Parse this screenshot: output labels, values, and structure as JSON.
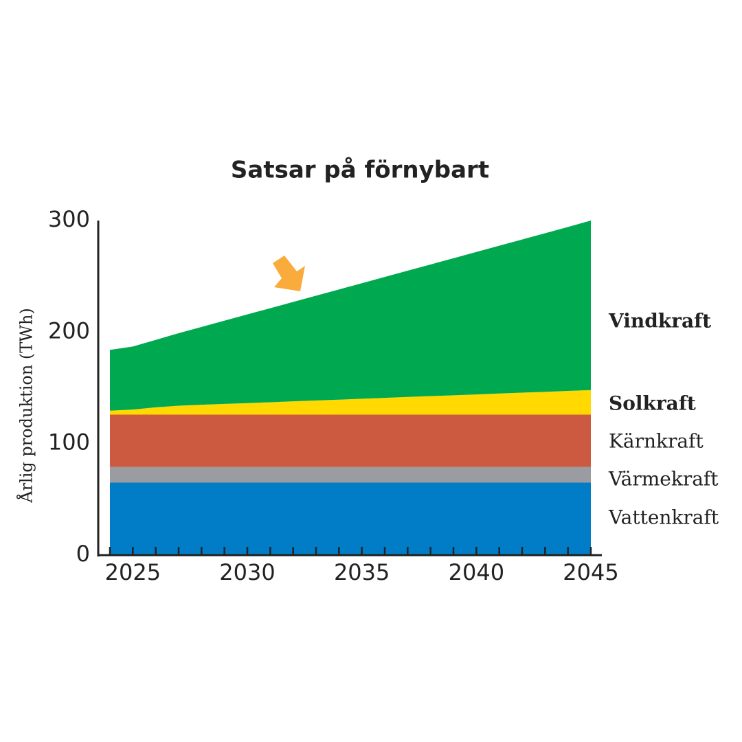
{
  "chart_data": {
    "type": "stacked_area",
    "title": "Satsar på förnybart",
    "ylabel": "Årlig produktion (TWh)",
    "x": [
      2024,
      2025,
      2026,
      2027,
      2028,
      2029,
      2030,
      2031,
      2032,
      2033,
      2034,
      2035,
      2036,
      2037,
      2038,
      2039,
      2040,
      2041,
      2042,
      2043,
      2044,
      2045
    ],
    "xlim": [
      2024,
      2045
    ],
    "xticks": [
      2025,
      2030,
      2035,
      2040,
      2045
    ],
    "ylim": [
      0,
      300
    ],
    "yticks": [
      0,
      100,
      200,
      300
    ],
    "series": [
      {
        "name": "Vattenkraft",
        "color": "#007dc6",
        "values": [
          65,
          65,
          65,
          65,
          65,
          65,
          65,
          65,
          65,
          65,
          65,
          65,
          65,
          65,
          65,
          65,
          65,
          65,
          65,
          65,
          65,
          65
        ]
      },
      {
        "name": "Värmekraft",
        "color": "#9b9ca1",
        "values": [
          14,
          14,
          14,
          14,
          14,
          14,
          14,
          14,
          14,
          14,
          14,
          14,
          14,
          14,
          14,
          14,
          14,
          14,
          14,
          14,
          14,
          14
        ]
      },
      {
        "name": "Kärnkraft",
        "color": "#cb5a40",
        "values": [
          47,
          47,
          47,
          47,
          47,
          47,
          47,
          47,
          47,
          47,
          47,
          47,
          47,
          47,
          47,
          47,
          47,
          47,
          47,
          47,
          47,
          47
        ]
      },
      {
        "name": "Solkraft",
        "color": "#ffd900",
        "values": [
          3.5,
          4.5,
          6.5,
          8,
          8.8,
          9.6,
          10.3,
          11.1,
          11.9,
          12.7,
          13.4,
          14.2,
          15,
          15.8,
          16.6,
          17.3,
          18.1,
          18.9,
          19.7,
          20.4,
          21.2,
          22
        ]
      },
      {
        "name": "Vindkraft",
        "color": "#00a94f",
        "values": [
          54.5,
          56.5,
          60.5,
          65,
          69.8,
          74.6,
          79.5,
          84.3,
          89.1,
          93.9,
          98.8,
          103.6,
          108.4,
          113.2,
          118,
          122.9,
          127.7,
          132.5,
          137.3,
          142.2,
          147,
          152
        ]
      }
    ]
  }
}
